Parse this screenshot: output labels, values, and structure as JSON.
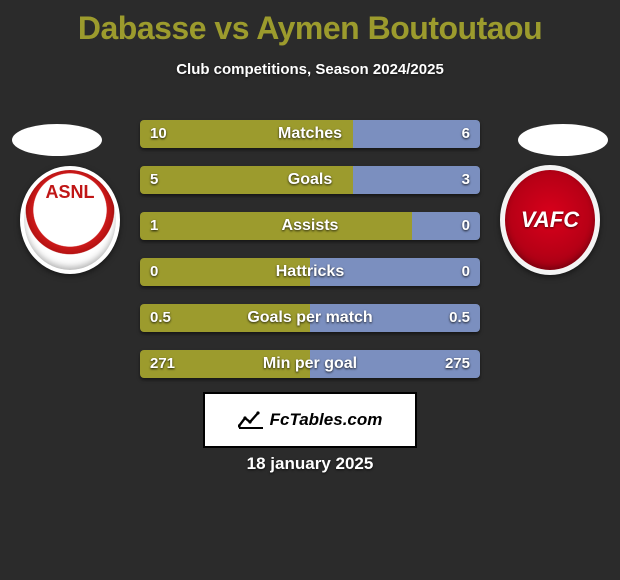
{
  "title_text": "Dabasse vs Aymen Boutoutaou",
  "title_color": "#9c9b2d",
  "subtitle_text": "Club competitions, Season 2024/2025",
  "date_text": "18 january 2025",
  "background_color": "#2b2b2b",
  "bar_colors": {
    "left_fill": "#9c9b2d",
    "right_fill": "#7b8fbf",
    "value_text": "#ffffff",
    "label_text": "#ffffff"
  },
  "left_club": {
    "badge_text": "ASNL",
    "badge_text_color": "#c01616"
  },
  "right_club": {
    "badge_text": "VAFC",
    "badge_text_color": "#ffffff"
  },
  "bars": [
    {
      "label": "Matches",
      "left_value": "10",
      "right_value": "6",
      "left_pct": 62.5,
      "right_pct": 37.5
    },
    {
      "label": "Goals",
      "left_value": "5",
      "right_value": "3",
      "left_pct": 62.5,
      "right_pct": 37.5
    },
    {
      "label": "Assists",
      "left_value": "1",
      "right_value": "0",
      "left_pct": 80,
      "right_pct": 20
    },
    {
      "label": "Hattricks",
      "left_value": "0",
      "right_value": "0",
      "left_pct": 50,
      "right_pct": 50
    },
    {
      "label": "Goals per match",
      "left_value": "0.5",
      "right_value": "0.5",
      "left_pct": 50,
      "right_pct": 50
    },
    {
      "label": "Min per goal",
      "left_value": "271",
      "right_value": "275",
      "left_pct": 50,
      "right_pct": 50
    }
  ],
  "footer_brand": "FcTables.com"
}
